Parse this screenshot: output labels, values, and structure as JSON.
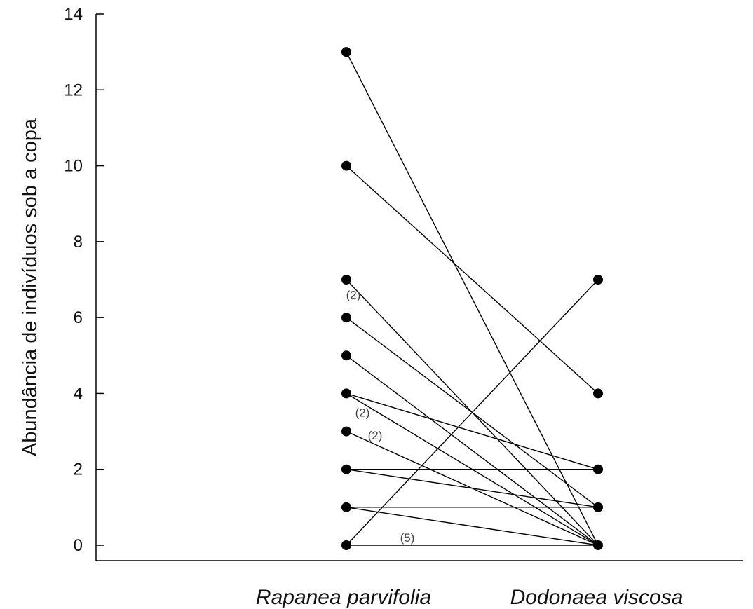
{
  "chart_data": {
    "type": "scatter",
    "title": "",
    "ylabel": "Abundância de indivíduos sob a copa",
    "xlabel": "",
    "categories": [
      "Rapanea parvifolia",
      "Dodonaea viscosa"
    ],
    "y_ticks": [
      "0",
      "2",
      "4",
      "6",
      "8",
      "10",
      "12",
      "14"
    ],
    "ylim": [
      0,
      14
    ],
    "grid": false,
    "pairs": [
      [
        13,
        0
      ],
      [
        10,
        4
      ],
      [
        7,
        0
      ],
      [
        6,
        1
      ],
      [
        5,
        0
      ],
      [
        4,
        2
      ],
      [
        4,
        0
      ],
      [
        3,
        0
      ],
      [
        2,
        2
      ],
      [
        2,
        1
      ],
      [
        1,
        1
      ],
      [
        1,
        0
      ],
      [
        0,
        7
      ],
      [
        0,
        0
      ]
    ],
    "annotations": [
      {
        "text": "(2)",
        "category": "Rapanea parvifolia",
        "y": 6.6
      },
      {
        "text": "(2)",
        "category": "Rapanea parvifolia",
        "y": 3.5
      },
      {
        "text": "(2)",
        "category": "Rapanea parvifolia",
        "y": 2.9
      },
      {
        "text": "(5)",
        "category": "Rapanea parvifolia",
        "y": 0.2
      }
    ]
  }
}
